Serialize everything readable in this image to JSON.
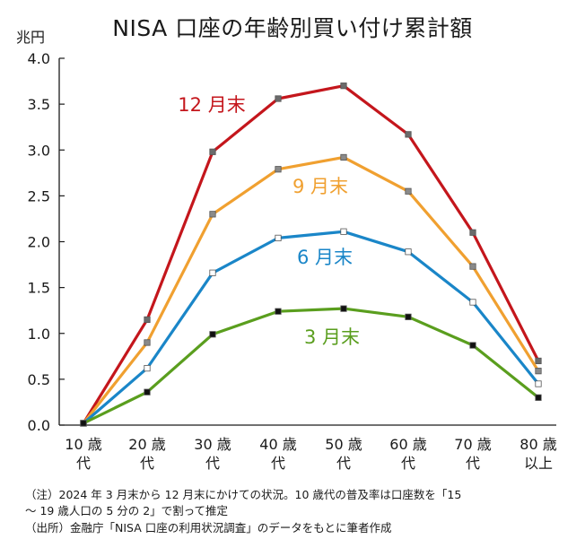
{
  "chart_data": {
    "type": "line",
    "title": "NISA 口座の年齢別買い付け累計額",
    "ylabel": "兆円",
    "ylim": [
      0,
      4.0
    ],
    "yticks": [
      "0.0",
      "0.5",
      "1.0",
      "1.5",
      "2.0",
      "2.5",
      "3.0",
      "3.5",
      "4.0"
    ],
    "categories": [
      [
        "10 歳",
        "代"
      ],
      [
        "20 歳",
        "代"
      ],
      [
        "30 歳",
        "代"
      ],
      [
        "40 歳",
        "代"
      ],
      [
        "50 歳",
        "代"
      ],
      [
        "60 歳",
        "代"
      ],
      [
        "70 歳",
        "代"
      ],
      [
        "80 歳",
        "以上"
      ]
    ],
    "grid": false,
    "legend": "inline labels",
    "series": [
      {
        "name": "12 月末",
        "color": "#c4161c",
        "marker": "#6b6b6b",
        "values": [
          0.02,
          1.15,
          2.98,
          3.56,
          3.7,
          3.17,
          2.1,
          0.7
        ]
      },
      {
        "name": "9 月末",
        "color": "#f0a030",
        "marker": "#8a8a8a",
        "values": [
          0.02,
          0.9,
          2.3,
          2.79,
          2.92,
          2.55,
          1.73,
          0.59
        ]
      },
      {
        "name": "6 月末",
        "color": "#1a86c8",
        "marker": "#ffffff",
        "values": [
          0.02,
          0.62,
          1.66,
          2.04,
          2.11,
          1.89,
          1.34,
          0.45
        ]
      },
      {
        "name": "3 月末",
        "color": "#5a9e1e",
        "marker": "#111111",
        "values": [
          0.02,
          0.36,
          0.99,
          1.24,
          1.27,
          1.18,
          0.87,
          0.3
        ]
      }
    ]
  },
  "notes": [
    "（注）2024 年 3 月末から 12 月末にかけての状況。10 歳代の普及率は口座数を「15",
    "～ 19 歳人口の 5 分の 2」で割って推定",
    "（出所）金融庁「NISA 口座の利用状況調査」のデータをもとに筆者作成"
  ]
}
